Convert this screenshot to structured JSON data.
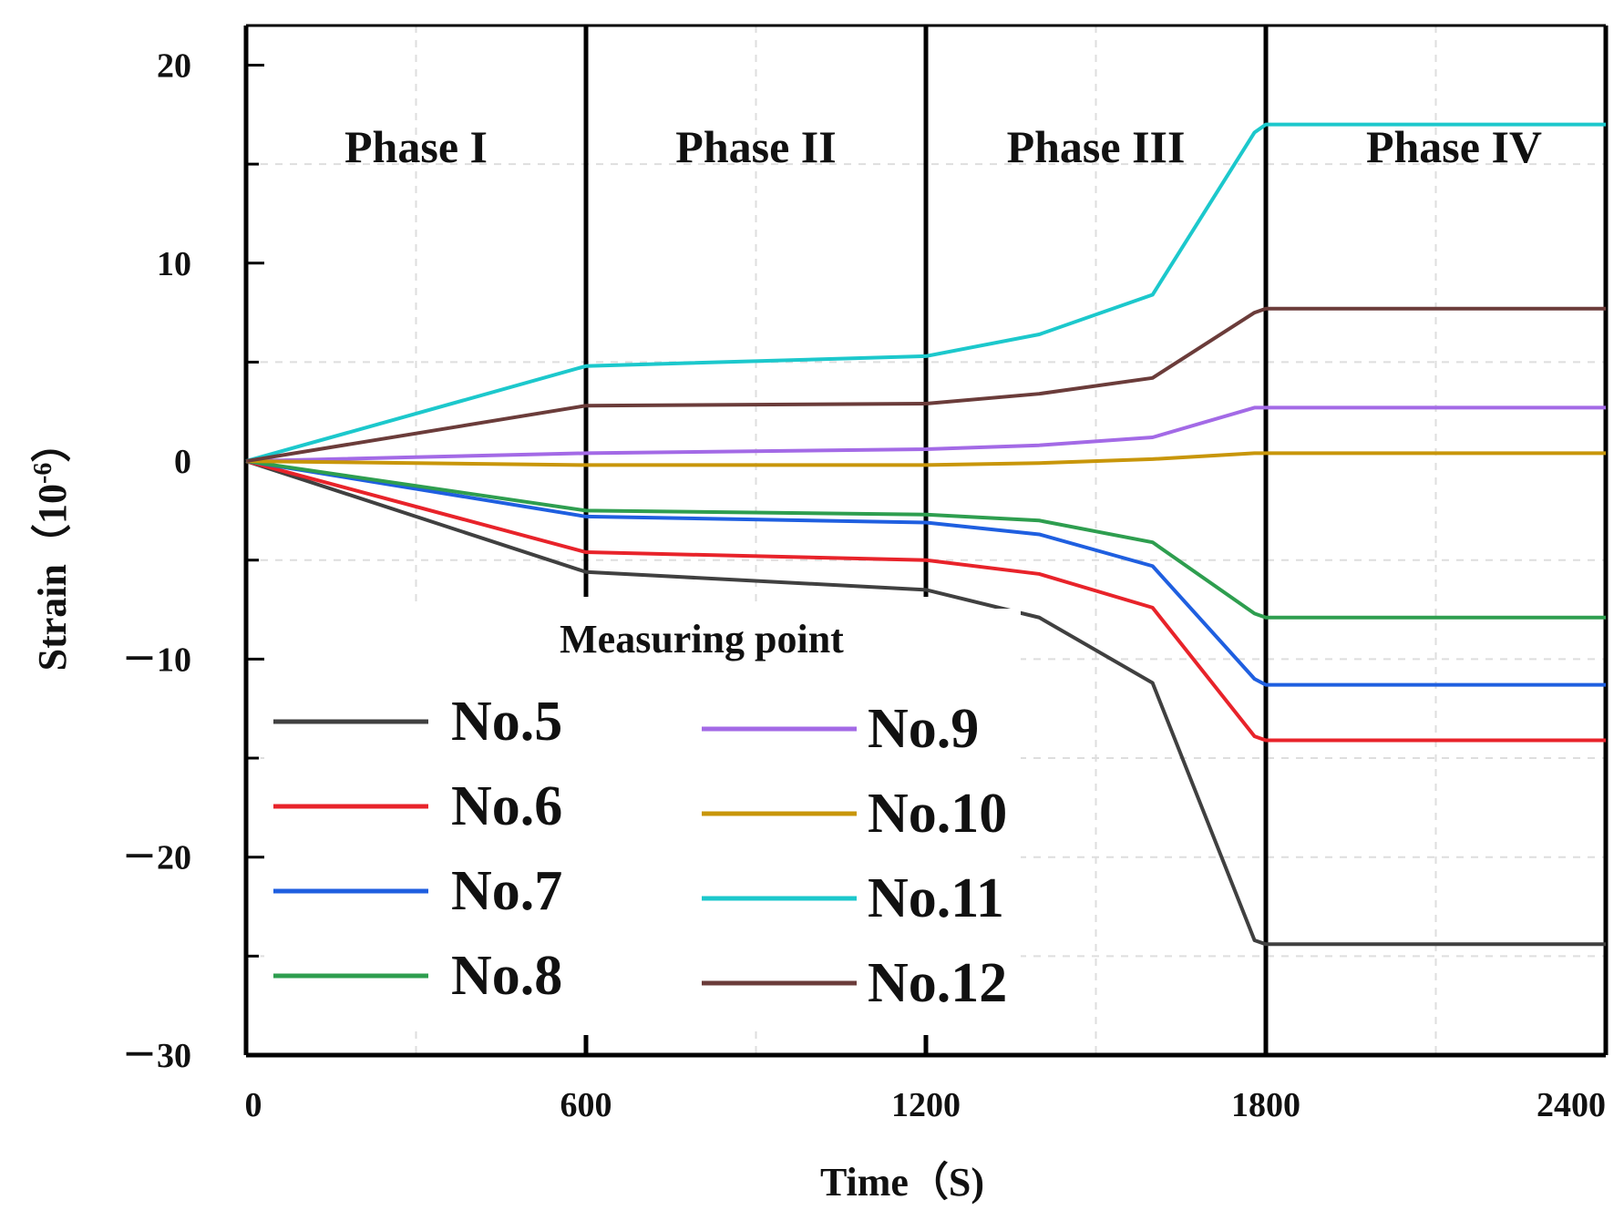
{
  "chart_data": {
    "type": "line",
    "xlabel": "Time（S)",
    "ylabel_main": "Strain（",
    "ylabel_unit_base": "10",
    "ylabel_unit_exp": "-6",
    "ylabel_close": "）",
    "xlim": [
      0,
      2400
    ],
    "ylim": [
      -30,
      22
    ],
    "x_ticks": [
      0,
      600,
      1200,
      1800,
      2400
    ],
    "x_tick_labels": [
      "0",
      "600",
      "1200",
      "1800",
      "2400"
    ],
    "y_ticks": [
      20,
      10,
      0,
      -10,
      -20,
      -30
    ],
    "y_tick_labels": [
      "20",
      "10",
      "0",
      "－10",
      "－20",
      "－30"
    ],
    "phase_boundaries": [
      600,
      1200,
      1800,
      2400
    ],
    "phases": [
      {
        "label": "Phase I",
        "x_start": 0,
        "x_end": 600
      },
      {
        "label": "Phase II",
        "x_start": 600,
        "x_end": 1200
      },
      {
        "label": "Phase III",
        "x_start": 1200,
        "x_end": 1800
      },
      {
        "label": "Phase IV",
        "x_start": 1800,
        "x_end": 2400
      }
    ],
    "legend_title": "Measuring point",
    "x": [
      0,
      600,
      1200,
      1400,
      1600,
      1780,
      1800,
      2400
    ],
    "series": [
      {
        "name": "No.5",
        "color": "#404040",
        "values": [
          0,
          -5.6,
          -6.5,
          -7.9,
          -11.2,
          -24.2,
          -24.4,
          -24.4
        ]
      },
      {
        "name": "No.6",
        "color": "#e8232a",
        "values": [
          0,
          -4.6,
          -5.0,
          -5.7,
          -7.4,
          -13.9,
          -14.1,
          -14.1
        ]
      },
      {
        "name": "No.7",
        "color": "#1f5fe0",
        "values": [
          0,
          -2.8,
          -3.1,
          -3.7,
          -5.3,
          -11.0,
          -11.3,
          -11.3
        ]
      },
      {
        "name": "No.8",
        "color": "#2e9e4f",
        "values": [
          0,
          -2.5,
          -2.7,
          -3.0,
          -4.1,
          -7.7,
          -7.9,
          -7.9
        ]
      },
      {
        "name": "No.9",
        "color": "#a36ae6",
        "values": [
          0,
          0.4,
          0.6,
          0.8,
          1.2,
          2.7,
          2.7,
          2.7
        ]
      },
      {
        "name": "No.10",
        "color": "#c8960a",
        "values": [
          0,
          -0.2,
          -0.2,
          -0.1,
          0.1,
          0.4,
          0.4,
          0.4
        ]
      },
      {
        "name": "No.11",
        "color": "#1cc8cc",
        "values": [
          0,
          4.8,
          5.3,
          6.4,
          8.4,
          16.6,
          17.0,
          17.0
        ]
      },
      {
        "name": "No.12",
        "color": "#6b3c3a",
        "values": [
          0,
          2.8,
          2.9,
          3.4,
          4.2,
          7.5,
          7.7,
          7.7
        ]
      }
    ]
  }
}
